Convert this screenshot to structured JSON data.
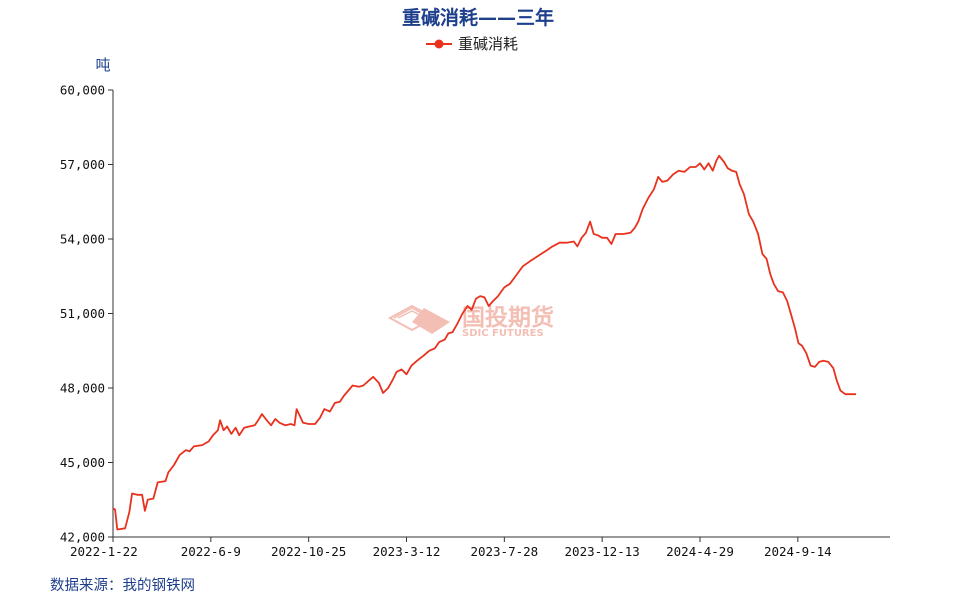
{
  "chart_data": {
    "type": "line",
    "title": "重碱消耗——三年",
    "ylabel": "吨",
    "ylim": [
      42000,
      60000
    ],
    "y_ticks": [
      42000,
      45000,
      48000,
      51000,
      54000,
      57000,
      60000
    ],
    "y_tick_labels": [
      "42,000",
      "45,000",
      "48,000",
      "51,000",
      "54,000",
      "57,000",
      "60,000"
    ],
    "x_range": [
      "2022-01-22",
      "2025-01-22"
    ],
    "x_tick_dates": [
      "2022-01-22",
      "2022-06-09",
      "2022-10-25",
      "2023-03-12",
      "2023-07-28",
      "2023-12-13",
      "2024-04-29",
      "2024-09-14"
    ],
    "x_tick_labels": [
      "2022-1-22",
      "2022-6-9",
      "2022-10-25",
      "2023-3-12",
      "2023-7-28",
      "2023-12-13",
      "2024-4-29",
      "2024-9-14"
    ],
    "grid": false,
    "legend_position": "top-center",
    "series": [
      {
        "name": "重碱消耗",
        "color": "#e8321e",
        "points": [
          [
            "2022-01-22",
            43150
          ],
          [
            "2022-01-25",
            43100
          ],
          [
            "2022-01-28",
            42300
          ],
          [
            "2022-02-08",
            42350
          ],
          [
            "2022-02-14",
            43000
          ],
          [
            "2022-02-18",
            43750
          ],
          [
            "2022-02-25",
            43700
          ],
          [
            "2022-03-04",
            43700
          ],
          [
            "2022-03-08",
            43050
          ],
          [
            "2022-03-12",
            43500
          ],
          [
            "2022-03-20",
            43550
          ],
          [
            "2022-03-26",
            44200
          ],
          [
            "2022-04-06",
            44250
          ],
          [
            "2022-04-10",
            44600
          ],
          [
            "2022-04-18",
            44900
          ],
          [
            "2022-04-26",
            45300
          ],
          [
            "2022-05-05",
            45500
          ],
          [
            "2022-05-10",
            45450
          ],
          [
            "2022-05-16",
            45650
          ],
          [
            "2022-05-28",
            45700
          ],
          [
            "2022-06-06",
            45850
          ],
          [
            "2022-06-12",
            46100
          ],
          [
            "2022-06-19",
            46300
          ],
          [
            "2022-06-22",
            46700
          ],
          [
            "2022-06-27",
            46300
          ],
          [
            "2022-07-02",
            46450
          ],
          [
            "2022-07-08",
            46150
          ],
          [
            "2022-07-14",
            46400
          ],
          [
            "2022-07-19",
            46100
          ],
          [
            "2022-07-26",
            46400
          ],
          [
            "2022-08-02",
            46450
          ],
          [
            "2022-08-10",
            46500
          ],
          [
            "2022-08-16",
            46750
          ],
          [
            "2022-08-20",
            46950
          ],
          [
            "2022-08-27",
            46700
          ],
          [
            "2022-09-02",
            46500
          ],
          [
            "2022-09-08",
            46750
          ],
          [
            "2022-09-14",
            46600
          ],
          [
            "2022-09-22",
            46500
          ],
          [
            "2022-09-30",
            46550
          ],
          [
            "2022-10-05",
            46500
          ],
          [
            "2022-10-08",
            47150
          ],
          [
            "2022-10-13",
            46850
          ],
          [
            "2022-10-17",
            46600
          ],
          [
            "2022-10-25",
            46550
          ],
          [
            "2022-11-03",
            46550
          ],
          [
            "2022-11-10",
            46800
          ],
          [
            "2022-11-16",
            47150
          ],
          [
            "2022-11-24",
            47050
          ],
          [
            "2022-12-01",
            47400
          ],
          [
            "2022-12-08",
            47450
          ],
          [
            "2022-12-14",
            47700
          ],
          [
            "2022-12-20",
            47900
          ],
          [
            "2022-12-26",
            48100
          ],
          [
            "2023-01-04",
            48050
          ],
          [
            "2023-01-10",
            48100
          ],
          [
            "2023-01-18",
            48300
          ],
          [
            "2023-01-24",
            48450
          ],
          [
            "2023-02-01",
            48200
          ],
          [
            "2023-02-07",
            47800
          ],
          [
            "2023-02-14",
            48000
          ],
          [
            "2023-02-20",
            48300
          ],
          [
            "2023-02-26",
            48650
          ],
          [
            "2023-03-05",
            48750
          ],
          [
            "2023-03-12",
            48550
          ],
          [
            "2023-03-19",
            48900
          ],
          [
            "2023-03-27",
            49100
          ],
          [
            "2023-04-05",
            49300
          ],
          [
            "2023-04-13",
            49500
          ],
          [
            "2023-04-21",
            49600
          ],
          [
            "2023-04-27",
            49850
          ],
          [
            "2023-05-05",
            49950
          ],
          [
            "2023-05-10",
            50200
          ],
          [
            "2023-05-16",
            50250
          ],
          [
            "2023-05-23",
            50600
          ],
          [
            "2023-05-30",
            51000
          ],
          [
            "2023-06-06",
            51300
          ],
          [
            "2023-06-12",
            51150
          ],
          [
            "2023-06-18",
            51600
          ],
          [
            "2023-06-24",
            51700
          ],
          [
            "2023-06-30",
            51650
          ],
          [
            "2023-07-06",
            51300
          ],
          [
            "2023-07-12",
            51500
          ],
          [
            "2023-07-19",
            51700
          ],
          [
            "2023-07-28",
            52050
          ],
          [
            "2023-08-05",
            52200
          ],
          [
            "2023-08-14",
            52550
          ],
          [
            "2023-08-23",
            52900
          ],
          [
            "2023-09-02",
            53100
          ],
          [
            "2023-09-10",
            53250
          ],
          [
            "2023-09-18",
            53400
          ],
          [
            "2023-09-26",
            53550
          ],
          [
            "2023-10-04",
            53700
          ],
          [
            "2023-10-14",
            53850
          ],
          [
            "2023-10-24",
            53850
          ],
          [
            "2023-11-03",
            53900
          ],
          [
            "2023-11-08",
            53700
          ],
          [
            "2023-11-14",
            54050
          ],
          [
            "2023-11-20",
            54250
          ],
          [
            "2023-11-26",
            54700
          ],
          [
            "2023-12-01",
            54200
          ],
          [
            "2023-12-07",
            54150
          ],
          [
            "2023-12-13",
            54050
          ],
          [
            "2023-12-20",
            54050
          ],
          [
            "2023-12-26",
            53800
          ],
          [
            "2024-01-01",
            54200
          ],
          [
            "2024-01-12",
            54200
          ],
          [
            "2024-01-22",
            54250
          ],
          [
            "2024-01-28",
            54450
          ],
          [
            "2024-02-02",
            54700
          ],
          [
            "2024-02-08",
            55200
          ],
          [
            "2024-02-16",
            55650
          ],
          [
            "2024-02-24",
            56000
          ],
          [
            "2024-03-01",
            56500
          ],
          [
            "2024-03-07",
            56300
          ],
          [
            "2024-03-14",
            56350
          ],
          [
            "2024-03-22",
            56600
          ],
          [
            "2024-03-30",
            56750
          ],
          [
            "2024-04-07",
            56700
          ],
          [
            "2024-04-15",
            56900
          ],
          [
            "2024-04-23",
            56900
          ],
          [
            "2024-04-29",
            57050
          ],
          [
            "2024-05-05",
            56800
          ],
          [
            "2024-05-11",
            57050
          ],
          [
            "2024-05-17",
            56750
          ],
          [
            "2024-05-22",
            57150
          ],
          [
            "2024-05-26",
            57350
          ],
          [
            "2024-06-02",
            57100
          ],
          [
            "2024-06-07",
            56850
          ],
          [
            "2024-06-13",
            56750
          ],
          [
            "2024-06-19",
            56700
          ],
          [
            "2024-06-24",
            56200
          ],
          [
            "2024-06-30",
            55800
          ],
          [
            "2024-07-07",
            55000
          ],
          [
            "2024-07-13",
            54700
          ],
          [
            "2024-07-20",
            54200
          ],
          [
            "2024-07-26",
            53400
          ],
          [
            "2024-08-01",
            53200
          ],
          [
            "2024-08-06",
            52600
          ],
          [
            "2024-08-11",
            52200
          ],
          [
            "2024-08-17",
            51900
          ],
          [
            "2024-08-24",
            51850
          ],
          [
            "2024-08-30",
            51500
          ],
          [
            "2024-09-05",
            50900
          ],
          [
            "2024-09-10",
            50400
          ],
          [
            "2024-09-15",
            49800
          ],
          [
            "2024-09-20",
            49700
          ],
          [
            "2024-09-26",
            49400
          ],
          [
            "2024-10-02",
            48900
          ],
          [
            "2024-10-08",
            48850
          ],
          [
            "2024-10-14",
            49050
          ],
          [
            "2024-10-20",
            49100
          ],
          [
            "2024-10-27",
            49050
          ],
          [
            "2024-11-03",
            48800
          ],
          [
            "2024-11-08",
            48300
          ],
          [
            "2024-11-13",
            47900
          ],
          [
            "2024-11-20",
            47750
          ],
          [
            "2024-12-05",
            47750
          ]
        ]
      }
    ],
    "source_note": "数据来源：我的钢铁网"
  },
  "watermark": {
    "brand_cn": "国投期货",
    "brand_en": "SDIC FUTURES",
    "color": "#f2b4a8"
  },
  "colors": {
    "title": "#1e3f8c",
    "axis": "#333333",
    "tick_text": "#111111",
    "source_text": "#1e3f8c"
  }
}
